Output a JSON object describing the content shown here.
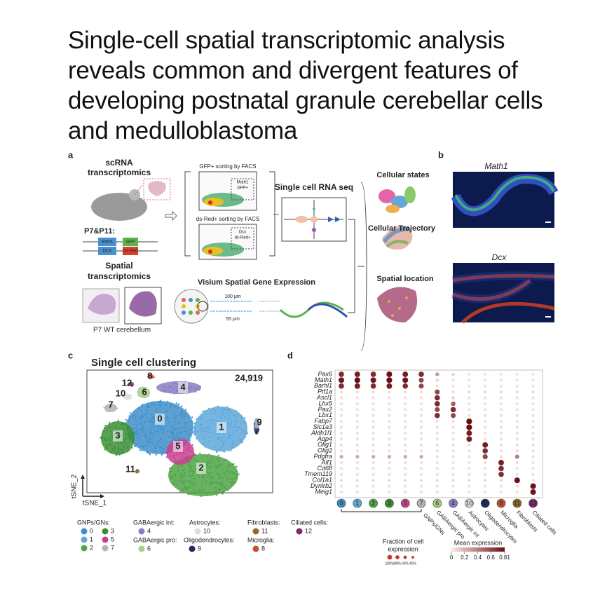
{
  "title": "Single-cell spatial transcriptomic analysis reveals common and divergent features of developing postnatal granule cerebellar cells and medulloblastoma",
  "panel_a": {
    "label": "a",
    "scrna": [
      "scRNA",
      "transcriptomics"
    ],
    "ages": "P7&P11:",
    "constructs": [
      "Math1",
      "GFP",
      "DCX",
      "Ds-Red"
    ],
    "spatial": [
      "Spatial",
      "transcriptomics"
    ],
    "tissue": "P7 WT cerebellum",
    "facs_gfp": {
      "title": "GFP+ sorting by FACS",
      "gate": [
        "Math1",
        "GFP+"
      ]
    },
    "facs_dsred": {
      "title": "ds-Red+ sorting by FACS",
      "gate": [
        "Dcx",
        "ds-Red+"
      ]
    },
    "scrnaseq": "Single cell RNA seq",
    "visium": "Visium Spatial Gene Expression",
    "scale": [
      "100 μm",
      "55 μm"
    ],
    "outputs": [
      "Cellular states",
      "Cellular Trajectory",
      "Spatial location"
    ]
  },
  "panel_b": {
    "label": "b",
    "images": [
      "Math1",
      "Dcx"
    ]
  },
  "panel_c": {
    "label": "c",
    "title": "Single cell clustering",
    "cell_count": "24,919",
    "clusters": [
      {
        "id": "0",
        "color": "#3f8fc9"
      },
      {
        "id": "1",
        "color": "#5ea8da"
      },
      {
        "id": "2",
        "color": "#4ea446"
      },
      {
        "id": "3",
        "color": "#3b8f36"
      },
      {
        "id": "4",
        "color": "#8b7cc2"
      },
      {
        "id": "5",
        "color": "#c8428f"
      },
      {
        "id": "6",
        "color": "#a8cf88"
      },
      {
        "id": "7",
        "color": "#b3b3b3"
      },
      {
        "id": "8",
        "color": "#c4532c"
      },
      {
        "id": "9",
        "color": "#1f2b5e"
      },
      {
        "id": "10",
        "color": "#dcdcdc"
      },
      {
        "id": "11",
        "color": "#8c6f22"
      },
      {
        "id": "12",
        "color": "#7d2a6c"
      }
    ],
    "y_axis": "tSNE_2",
    "x_axis": "tSNE_1",
    "legend": [
      {
        "group": "GNPs/GNs:",
        "clusters": [
          "0",
          "3",
          "1",
          "5",
          "2",
          "7"
        ]
      },
      {
        "group": "GABAergic int:",
        "clusters": [
          "4"
        ]
      },
      {
        "group": "GABAergic pro:",
        "clusters": [
          "6"
        ]
      },
      {
        "group": "Astrocytes:",
        "clusters": [
          "10"
        ]
      },
      {
        "group": "Oligodendrocytes:",
        "clusters": [
          "9"
        ]
      },
      {
        "group": "Fibroblasts:",
        "clusters": [
          "11"
        ]
      },
      {
        "group": "Microglia:",
        "clusters": [
          "8"
        ]
      },
      {
        "group": "Ciliated cells:",
        "clusters": [
          "12"
        ]
      }
    ]
  },
  "panel_d": {
    "label": "d",
    "genes": [
      "Pax6",
      "Math1",
      "Barhl1",
      "Ptf1a",
      "Ascl1",
      "Lhx5",
      "Pax2",
      "Lbx1",
      "Fabp7",
      "Slc1a3",
      "Aldh1l1",
      "Aqp4",
      "Olig1",
      "Olig2",
      "Pdgfra",
      "Aif1",
      "Cd68",
      "Tmem119",
      "Col1a1",
      "Dynlrb2",
      "Meig1"
    ],
    "columns": [
      "0",
      "1",
      "2",
      "3",
      "5",
      "7",
      "6",
      "4",
      "10",
      "9",
      "8",
      "11",
      "12"
    ],
    "groups": [
      {
        "name": "GNPs/GNs",
        "clusters": [
          "0",
          "1",
          "2",
          "3",
          "5",
          "7"
        ]
      },
      {
        "name": "GABAergic pro",
        "clusters": [
          "6"
        ]
      },
      {
        "name": "GABAergic int",
        "clusters": [
          "4"
        ]
      },
      {
        "name": "Astrocytes",
        "clusters": [
          "10"
        ]
      },
      {
        "name": "Oligodendrocytes",
        "clusters": [
          "9"
        ]
      },
      {
        "name": "Microglia",
        "clusters": [
          "8"
        ]
      },
      {
        "name": "Fibroblasts",
        "clusters": [
          "11"
        ]
      },
      {
        "name": "Ciliated cells",
        "clusters": [
          "12"
        ]
      }
    ],
    "mean_expression": [
      [
        0.7,
        0.75,
        0.7,
        0.8,
        0.75,
        0.7,
        0.3,
        0.1,
        0.05,
        0.05,
        0.05,
        0.05,
        0.05
      ],
      [
        0.78,
        0.81,
        0.78,
        0.81,
        0.78,
        0.6,
        0.1,
        0.05,
        0.05,
        0.05,
        0.05,
        0.05,
        0.05
      ],
      [
        0.7,
        0.75,
        0.7,
        0.75,
        0.7,
        0.6,
        0.05,
        0.05,
        0.05,
        0.05,
        0.05,
        0.05,
        0.05
      ],
      [
        0.05,
        0.05,
        0.05,
        0.05,
        0.05,
        0.05,
        0.6,
        0.05,
        0.05,
        0.05,
        0.05,
        0.05,
        0.05
      ],
      [
        0.05,
        0.05,
        0.05,
        0.05,
        0.05,
        0.05,
        0.7,
        0.1,
        0.05,
        0.05,
        0.05,
        0.05,
        0.05
      ],
      [
        0.05,
        0.05,
        0.05,
        0.05,
        0.05,
        0.05,
        0.7,
        0.5,
        0.05,
        0.05,
        0.05,
        0.05,
        0.05
      ],
      [
        0.05,
        0.05,
        0.05,
        0.05,
        0.05,
        0.05,
        0.6,
        0.7,
        0.05,
        0.05,
        0.05,
        0.05,
        0.05
      ],
      [
        0.05,
        0.05,
        0.05,
        0.05,
        0.05,
        0.05,
        0.7,
        0.6,
        0.05,
        0.05,
        0.05,
        0.05,
        0.05
      ],
      [
        0.05,
        0.05,
        0.05,
        0.05,
        0.05,
        0.05,
        0.05,
        0.05,
        0.81,
        0.05,
        0.05,
        0.05,
        0.05
      ],
      [
        0.05,
        0.05,
        0.05,
        0.05,
        0.05,
        0.05,
        0.05,
        0.05,
        0.81,
        0.05,
        0.05,
        0.05,
        0.05
      ],
      [
        0.05,
        0.05,
        0.05,
        0.05,
        0.05,
        0.05,
        0.05,
        0.05,
        0.75,
        0.05,
        0.05,
        0.05,
        0.05
      ],
      [
        0.05,
        0.05,
        0.05,
        0.05,
        0.05,
        0.05,
        0.05,
        0.05,
        0.75,
        0.05,
        0.05,
        0.05,
        0.05
      ],
      [
        0.05,
        0.05,
        0.05,
        0.05,
        0.05,
        0.05,
        0.05,
        0.05,
        0.05,
        0.75,
        0.05,
        0.05,
        0.05
      ],
      [
        0.05,
        0.05,
        0.05,
        0.05,
        0.05,
        0.05,
        0.05,
        0.05,
        0.05,
        0.7,
        0.05,
        0.05,
        0.05
      ],
      [
        0.25,
        0.25,
        0.25,
        0.25,
        0.25,
        0.25,
        0.05,
        0.05,
        0.05,
        0.6,
        0.05,
        0.4,
        0.05
      ],
      [
        0.05,
        0.05,
        0.05,
        0.05,
        0.05,
        0.05,
        0.05,
        0.05,
        0.05,
        0.05,
        0.75,
        0.05,
        0.05
      ],
      [
        0.05,
        0.05,
        0.05,
        0.05,
        0.05,
        0.05,
        0.05,
        0.05,
        0.05,
        0.05,
        0.7,
        0.05,
        0.05
      ],
      [
        0.05,
        0.05,
        0.05,
        0.05,
        0.05,
        0.05,
        0.05,
        0.05,
        0.05,
        0.05,
        0.7,
        0.05,
        0.05
      ],
      [
        0.05,
        0.05,
        0.05,
        0.05,
        0.05,
        0.05,
        0.05,
        0.05,
        0.05,
        0.05,
        0.05,
        0.8,
        0.05
      ],
      [
        0.05,
        0.05,
        0.05,
        0.05,
        0.05,
        0.05,
        0.05,
        0.05,
        0.05,
        0.05,
        0.05,
        0.05,
        0.8
      ],
      [
        0.05,
        0.05,
        0.05,
        0.05,
        0.05,
        0.05,
        0.05,
        0.05,
        0.05,
        0.05,
        0.05,
        0.05,
        0.78
      ]
    ],
    "fraction_title": [
      "Fraction of cell",
      "expression"
    ],
    "fraction_ticks": [
      "100%",
      "80%",
      "60%",
      "40%"
    ],
    "mean_title": "Mean expression",
    "mean_ticks": [
      0,
      0.2,
      0.4,
      0.6,
      0.81
    ]
  }
}
